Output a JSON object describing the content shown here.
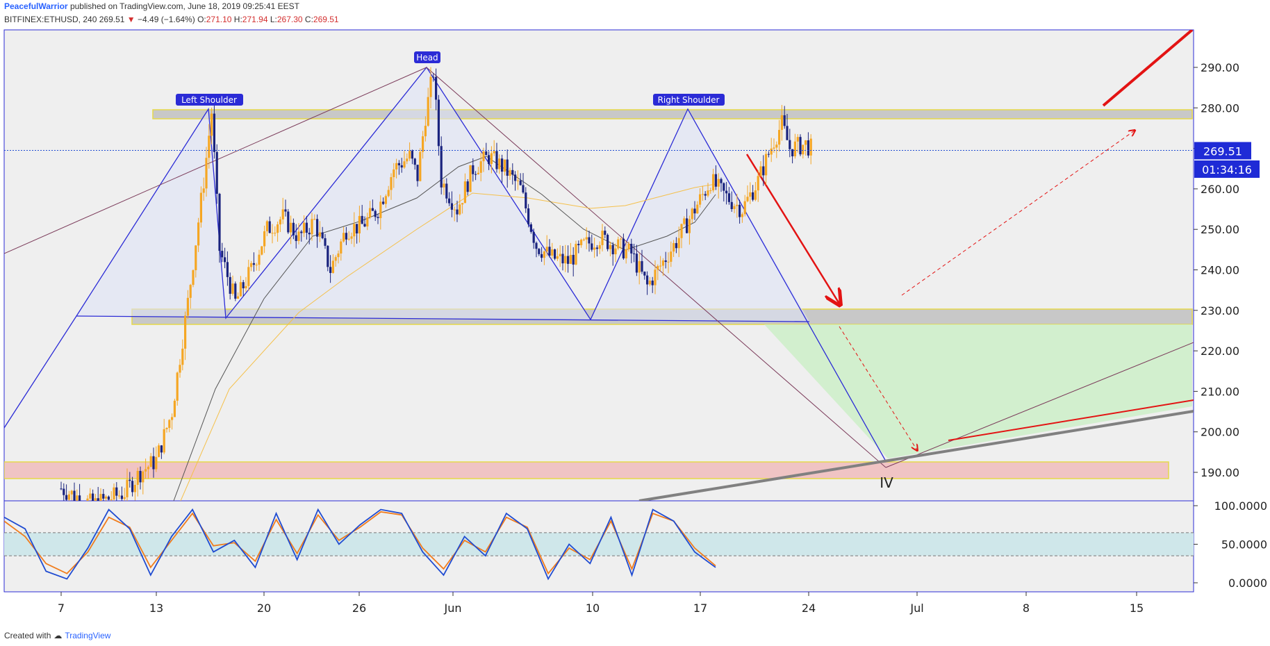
{
  "header": {
    "author": "PeacefulWarrior",
    "published": "published on TradingView.com, June 18, 2019 09:25:41 EEST",
    "symbol": "BITFINEX:ETHUSD, 240",
    "last": "269.51",
    "change": "−4.49 (−1.64%)",
    "o_label": "O:",
    "o_value": "271.10",
    "h_label": "H:",
    "h_value": "271.94",
    "l_label": "L:",
    "l_value": "267.30",
    "c_label": "C:",
    "c_value": "269.51"
  },
  "footer": {
    "created": "Created with",
    "brand": "TradingView"
  },
  "price_label": "269.51",
  "countdown_label": "01:34:16",
  "colors": {
    "up": "#f5a623",
    "down": "#1a237e",
    "pattern": "#2b2bd6",
    "red": "#e31313",
    "resistance": "#c8c8c8",
    "support_pink": "#f0c4c4",
    "green_zone": "#cdeec8",
    "stoch_k": "#1f4bd1",
    "stoch_d": "#f07c1c"
  },
  "annotations": {
    "left_shoulder": "Left Shoulder",
    "head": "Head",
    "right_shoulder": "Right Shoulder",
    "wave_iv": "IV"
  },
  "chart_data": {
    "type": "candlestick",
    "symbol": "ETHUSD",
    "interval": "240",
    "ylim": [
      182,
      299
    ],
    "y_ticks": [
      "290.00",
      "280.00",
      "270.00",
      "260.00",
      "250.00",
      "240.00",
      "230.00",
      "220.00",
      "210.00",
      "200.00",
      "190.00"
    ],
    "x_ticks": [
      "7",
      "13",
      "20",
      "26",
      "Jun",
      "10",
      "17",
      "24",
      "Jul",
      "8",
      "15"
    ],
    "last_price": 269.51,
    "resistance_zone": [
      277,
      280
    ],
    "support_zone": [
      226,
      230
    ],
    "wave_iv_zone": [
      188,
      192
    ],
    "close_path": [
      [
        7,
        186
      ],
      [
        9,
        182
      ],
      [
        11,
        185
      ],
      [
        12,
        190
      ],
      [
        13,
        193
      ],
      [
        14,
        205
      ],
      [
        15,
        232
      ],
      [
        16,
        262
      ],
      [
        16.5,
        279
      ],
      [
        17,
        245
      ],
      [
        18,
        232
      ],
      [
        19,
        240
      ],
      [
        20,
        250
      ],
      [
        21,
        253
      ],
      [
        22,
        248
      ],
      [
        23,
        252
      ],
      [
        24,
        240
      ],
      [
        25,
        250
      ],
      [
        26,
        251
      ],
      [
        27,
        255
      ],
      [
        28,
        265
      ],
      [
        29,
        268
      ],
      [
        29.5,
        263
      ],
      [
        30,
        278
      ],
      [
        30.5,
        289
      ],
      [
        31,
        262
      ],
      [
        32,
        255
      ],
      [
        33,
        265
      ],
      [
        34,
        268
      ],
      [
        35,
        265
      ],
      [
        36,
        260
      ],
      [
        37,
        246
      ],
      [
        38,
        243
      ],
      [
        39,
        242
      ],
      [
        40,
        246
      ],
      [
        41,
        248
      ],
      [
        42,
        246
      ],
      [
        43,
        244
      ],
      [
        44,
        236
      ],
      [
        45,
        242
      ],
      [
        46,
        248
      ],
      [
        47,
        255
      ],
      [
        48,
        262
      ],
      [
        49,
        258
      ],
      [
        50,
        255
      ],
      [
        51,
        262
      ],
      [
        52,
        272
      ],
      [
        52.5,
        276
      ],
      [
        53,
        270
      ],
      [
        54,
        271
      ],
      [
        54.5,
        269.51
      ]
    ],
    "stochastic": {
      "ylim": [
        0,
        100
      ],
      "y_ticks": [
        "100.0000",
        "50.0000",
        "0.0000"
      ],
      "band": [
        35,
        65
      ],
      "k_values": [
        85,
        70,
        15,
        5,
        45,
        95,
        70,
        10,
        60,
        95,
        40,
        55,
        20,
        90,
        30,
        95,
        50,
        75,
        95,
        90,
        40,
        10,
        60,
        35,
        90,
        70,
        5,
        50,
        25,
        85,
        10,
        95,
        80,
        40,
        20
      ],
      "d_values": [
        80,
        60,
        25,
        12,
        40,
        85,
        72,
        20,
        55,
        90,
        48,
        52,
        28,
        82,
        38,
        88,
        55,
        72,
        92,
        88,
        45,
        18,
        55,
        40,
        85,
        72,
        12,
        45,
        30,
        80,
        18,
        90,
        80,
        45,
        22
      ]
    }
  }
}
